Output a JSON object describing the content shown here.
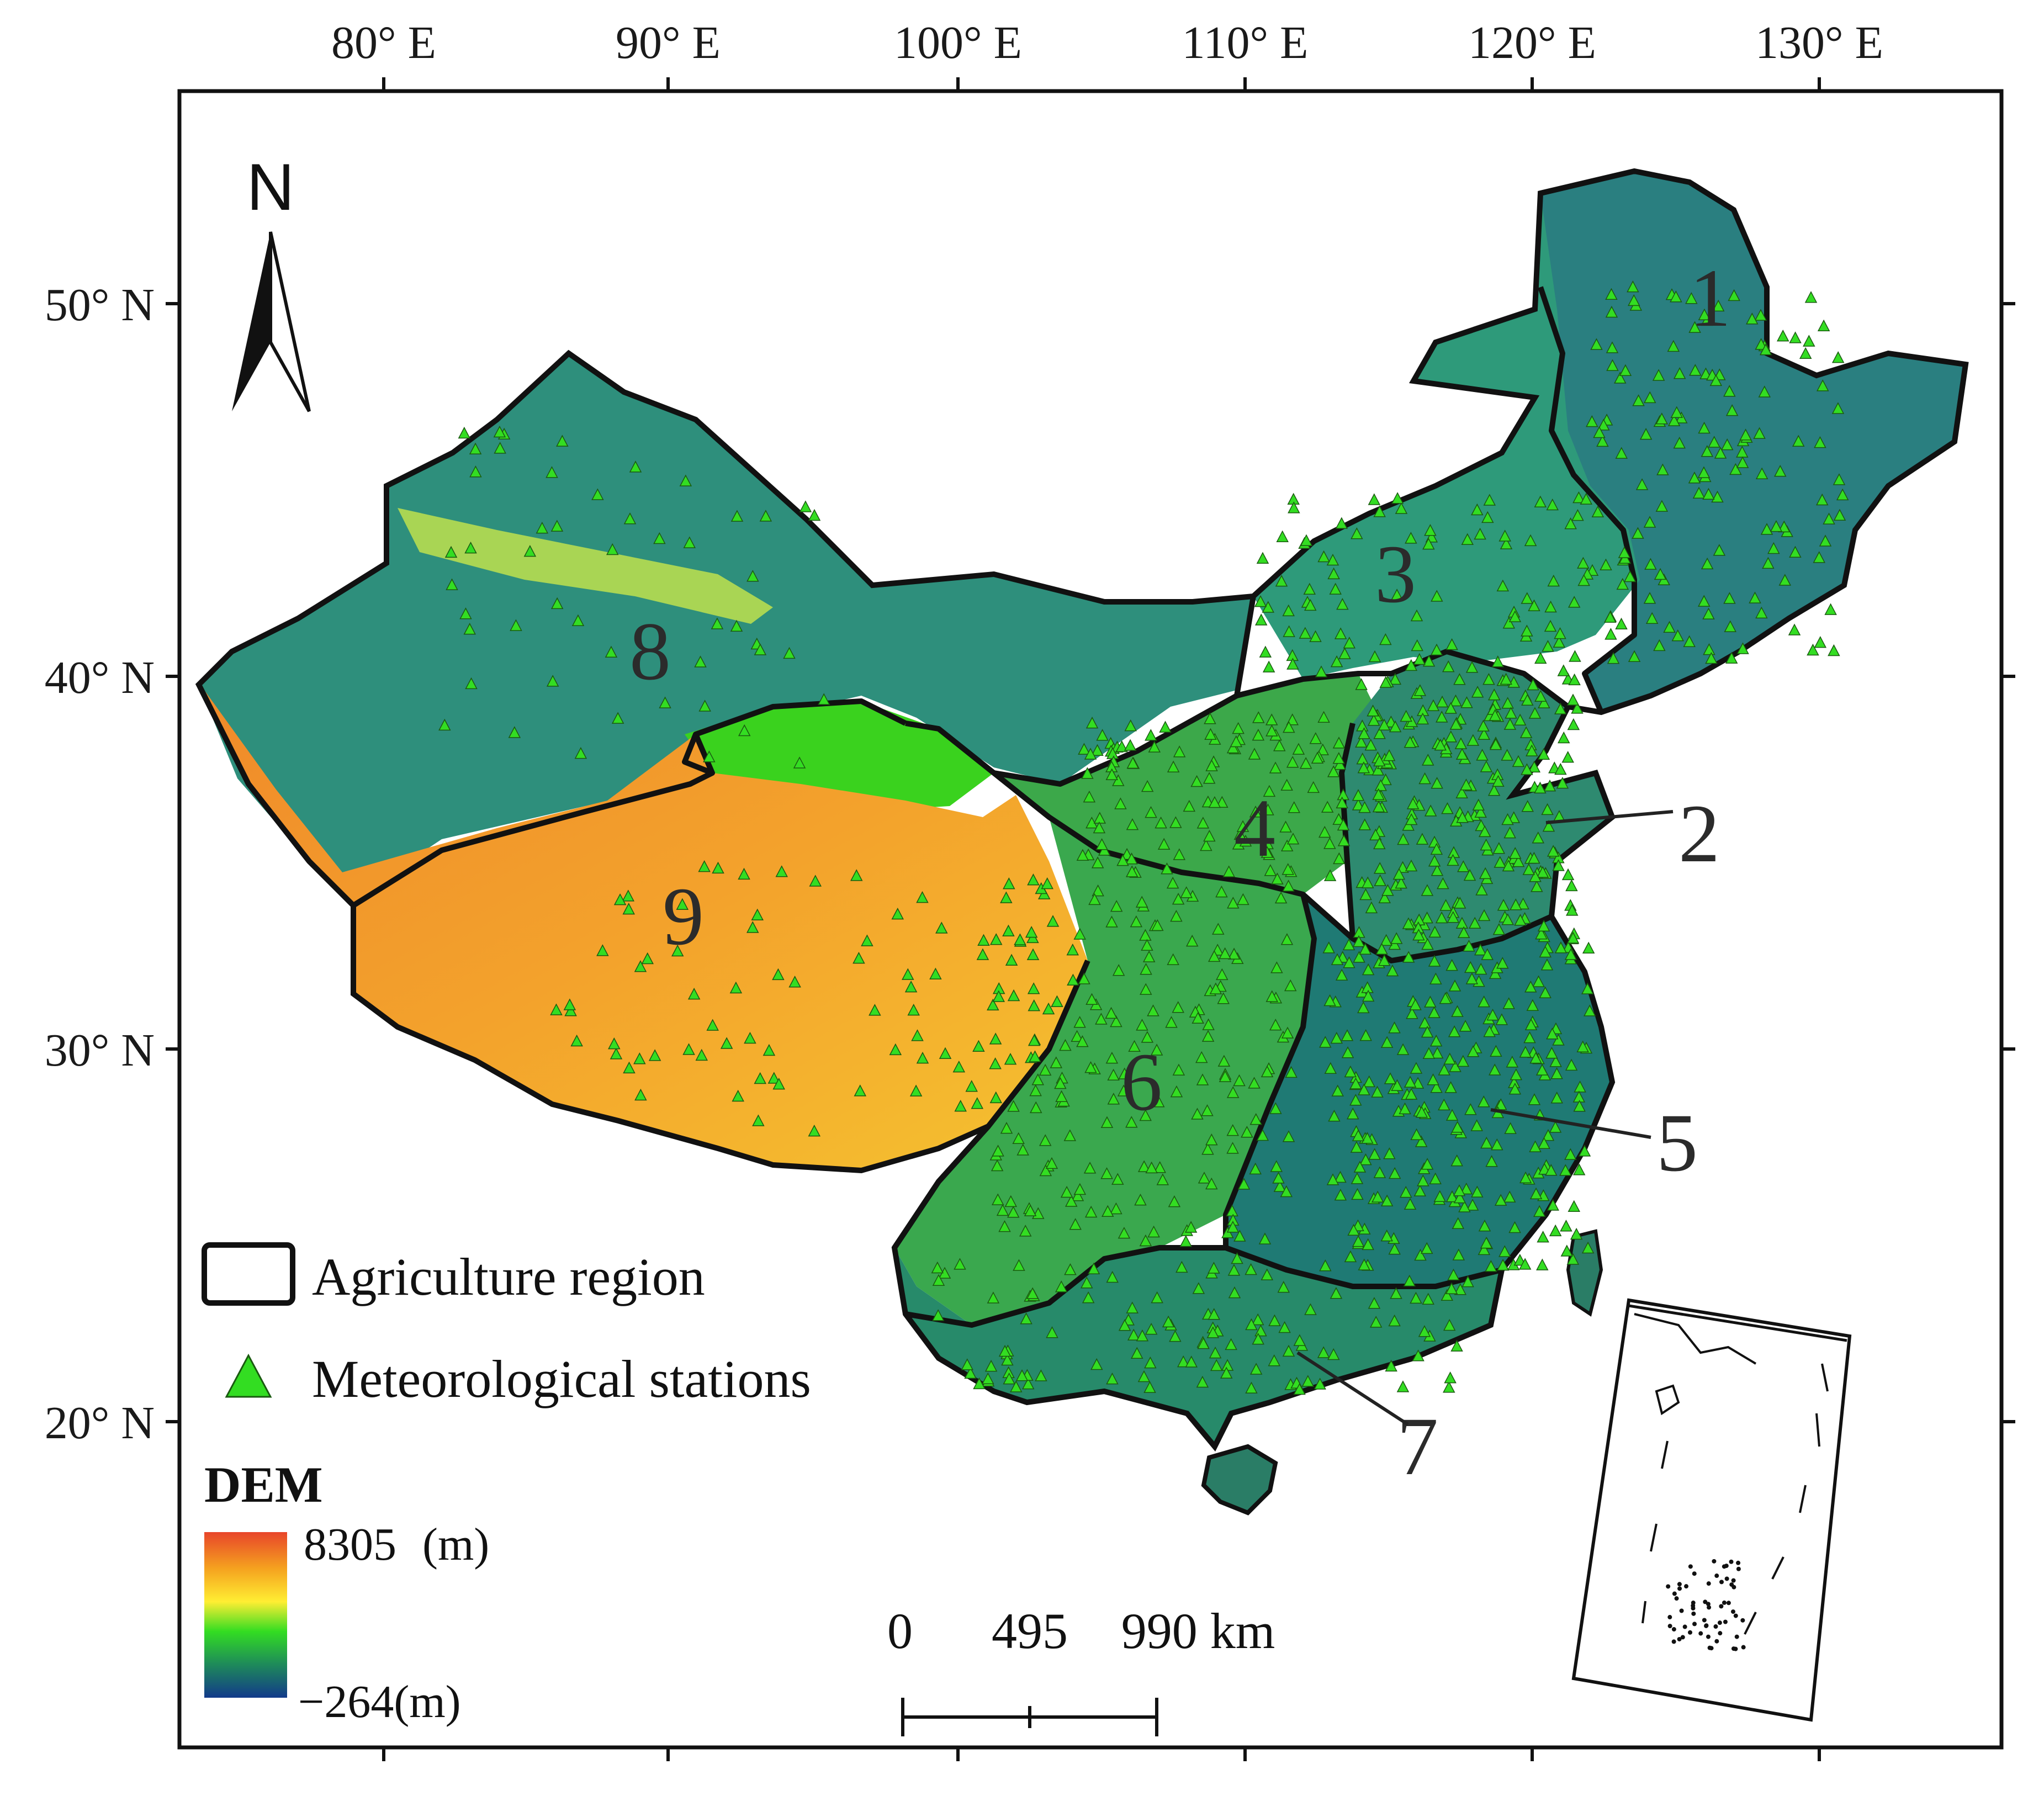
{
  "axes": {
    "top_ticks": [
      "80° E",
      "90° E",
      "100° E",
      "110° E",
      "120° E",
      "130° E"
    ],
    "left_ticks": [
      "50° N",
      "40° N",
      "30° N",
      "20° N"
    ]
  },
  "north_arrow": {
    "label": "N",
    "icon": "north-arrow-icon"
  },
  "regions": [
    {
      "num": "1"
    },
    {
      "num": "2"
    },
    {
      "num": "3"
    },
    {
      "num": "4"
    },
    {
      "num": "5"
    },
    {
      "num": "6"
    },
    {
      "num": "7"
    },
    {
      "num": "8"
    },
    {
      "num": "9"
    }
  ],
  "legend": {
    "boundary_label": "Agriculture region",
    "stations_label": "Meteorological stations",
    "station_color": "#33dd22"
  },
  "dem": {
    "title": "DEM",
    "max_label": "8305",
    "max_unit": "(m)",
    "min_label": "−264(m)",
    "colors": [
      "#e8452a",
      "#f5a21f",
      "#ffee33",
      "#33dd22",
      "#1e8a5a",
      "#123a8a"
    ]
  },
  "scale_bar": {
    "labels": [
      "0",
      "495",
      "990 km"
    ]
  }
}
